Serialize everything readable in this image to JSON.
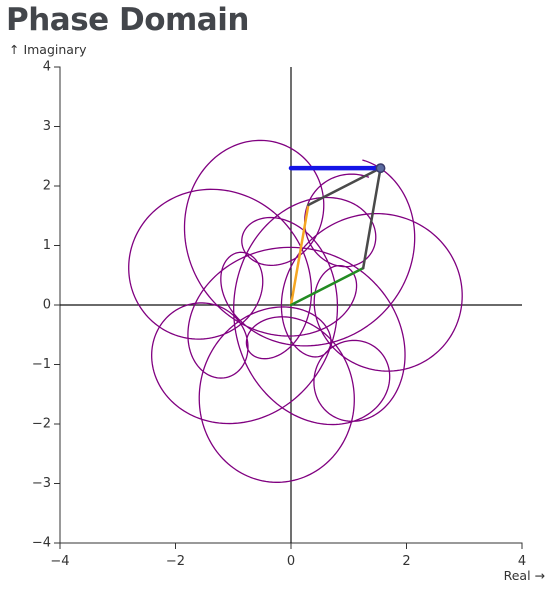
{
  "title": "Phase Domain",
  "chart_data": {
    "type": "line",
    "title": "Phase Domain",
    "xlabel": "Real →",
    "ylabel": "↑ Imaginary",
    "xlim": [
      -4,
      4
    ],
    "ylim": [
      -4,
      4
    ],
    "x_ticks": [
      -4,
      -2,
      0,
      2,
      4
    ],
    "y_ticks": [
      -4,
      -3,
      -2,
      -1,
      0,
      1,
      2,
      3,
      4
    ],
    "x_tick_labels": [
      "−4",
      "−2",
      "0",
      "2",
      "4"
    ],
    "y_tick_labels": [
      "−4",
      "−3",
      "−2",
      "−1",
      "0",
      "1",
      "2",
      "3",
      "4"
    ],
    "grid": false,
    "zero_lines": true,
    "trace": {
      "color": "#800080",
      "components": [
        {
          "amplitude": 1.0,
          "frequency": 2,
          "phase": 1.2
        },
        {
          "amplitude": 1.0,
          "frequency": -5.05,
          "phase": 0.53
        },
        {
          "amplitude": 1.0,
          "frequency": -13,
          "phase": 1.56
        }
      ],
      "turns": 1.0
    },
    "phasors": [
      {
        "from": [
          0,
          0
        ],
        "to": [
          0.3,
          1.68
        ],
        "color": "#f5a623"
      },
      {
        "from": [
          0,
          0
        ],
        "to": [
          1.25,
          0.62
        ],
        "color": "#228b22"
      },
      {
        "from": [
          0.3,
          1.68
        ],
        "to": [
          1.55,
          2.3
        ],
        "color": "#4a4a4a"
      },
      {
        "from": [
          1.25,
          0.62
        ],
        "to": [
          1.55,
          2.3
        ],
        "color": "#4a4a4a"
      }
    ],
    "projection": {
      "from": [
        0,
        2.3
      ],
      "to": [
        1.55,
        2.3
      ],
      "color": "#1414e6"
    },
    "current_point": {
      "x": 1.55,
      "y": 2.3,
      "color": "#3a3a6a"
    }
  }
}
